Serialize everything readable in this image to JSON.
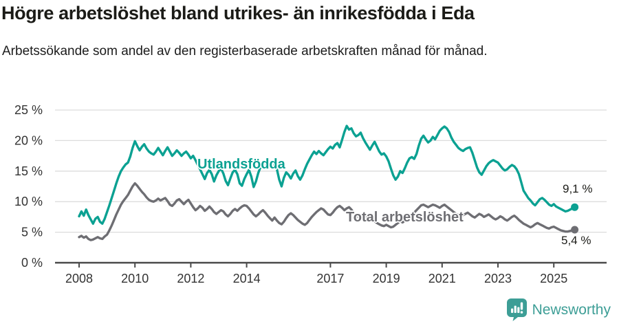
{
  "header": {
    "title": "Högre arbetslöshet bland utrikes- än inrikesfödda i Eda",
    "subtitle": "Arbetssökande som andel av den registerbaserade arbetskraften månad för månad."
  },
  "footer": {
    "brand": "Newsworthy",
    "logo_icon": "bar-chart-speech-bubble-icon"
  },
  "colors": {
    "accent_teal": "#0ba192",
    "series_gray": "#6e6e73",
    "logo_teal": "#3d9e96",
    "grid": "#dcdcdc",
    "axis": "#4a4a4a",
    "tick_text": "#333333",
    "heading_text": "#1b1b17"
  },
  "chart_data": {
    "type": "line",
    "unit": "%",
    "x_start": "2008-01",
    "x_frequency": "monthly",
    "ylim": [
      0,
      25
    ],
    "grid": true,
    "legend_position": "inline-labels",
    "y_ticks": [
      0,
      5,
      10,
      15,
      20,
      25
    ],
    "y_tick_suffix": " %",
    "x_ticks": [
      {
        "label": "2008",
        "year": 2008
      },
      {
        "label": "2010",
        "year": 2010
      },
      {
        "label": "2012",
        "year": 2012
      },
      {
        "label": "2014",
        "year": 2014
      },
      {
        "label": "2017",
        "year": 2017
      },
      {
        "label": "2019",
        "year": 2019
      },
      {
        "label": "2021",
        "year": 2021
      },
      {
        "label": "2023",
        "year": 2023
      },
      {
        "label": "2025",
        "year": 2025
      }
    ],
    "series": [
      {
        "name": "Utlandsfödda",
        "color": "#0ba192",
        "end_label": "9,1 %",
        "end_value": 9.1,
        "values": [
          7.6,
          8.4,
          7.7,
          8.7,
          7.8,
          7.1,
          6.4,
          7.2,
          7.5,
          6.7,
          6.4,
          7.2,
          8.3,
          9.4,
          10.6,
          11.8,
          13.0,
          14.1,
          15.0,
          15.6,
          16.1,
          16.4,
          17.4,
          18.8,
          19.9,
          19.1,
          18.4,
          19.0,
          19.4,
          18.7,
          18.2,
          17.9,
          17.7,
          18.2,
          18.8,
          18.2,
          17.6,
          18.3,
          18.9,
          18.2,
          17.5,
          17.9,
          18.4,
          18.0,
          17.5,
          17.9,
          18.2,
          17.7,
          17.1,
          17.5,
          16.8,
          16.0,
          15.3,
          14.5,
          13.7,
          14.7,
          15.2,
          14.5,
          13.3,
          14.3,
          15.0,
          15.4,
          14.6,
          13.4,
          12.7,
          13.8,
          14.8,
          15.2,
          14.5,
          13.0,
          12.6,
          13.7,
          14.5,
          15.2,
          14.1,
          12.4,
          13.3,
          14.7,
          15.7,
          16.2,
          15.8,
          16.3,
          15.7,
          16.0,
          16.2,
          15.3,
          13.6,
          12.5,
          13.9,
          14.8,
          14.4,
          13.8,
          14.6,
          15.1,
          14.2,
          13.6,
          14.3,
          15.3,
          16.2,
          16.9,
          17.6,
          18.2,
          17.8,
          18.3,
          17.9,
          17.6,
          18.1,
          18.6,
          19.0,
          18.7,
          19.3,
          19.6,
          18.9,
          20.1,
          21.4,
          22.4,
          21.8,
          22.0,
          21.2,
          20.7,
          20.9,
          21.3,
          20.4,
          19.7,
          19.1,
          18.5,
          19.2,
          19.8,
          19.0,
          18.2,
          17.7,
          17.9,
          17.4,
          16.6,
          15.4,
          14.3,
          13.6,
          14.1,
          15.0,
          14.7,
          15.5,
          16.4,
          17.1,
          17.3,
          17.0,
          17.8,
          19.2,
          20.3,
          20.8,
          20.2,
          19.7,
          20.0,
          20.6,
          20.2,
          20.9,
          21.6,
          22.0,
          22.3,
          22.0,
          21.4,
          20.5,
          19.8,
          19.3,
          18.8,
          18.5,
          18.3,
          18.6,
          18.8,
          18.9,
          18.0,
          16.8,
          15.6,
          14.8,
          14.4,
          15.1,
          15.8,
          16.3,
          16.6,
          16.8,
          16.6,
          16.4,
          15.9,
          15.4,
          15.1,
          15.3,
          15.7,
          16.0,
          15.8,
          15.3,
          14.5,
          13.2,
          11.8,
          11.2,
          10.6,
          10.2,
          9.7,
          9.4,
          9.9,
          10.4,
          10.6,
          10.3,
          9.9,
          9.5,
          9.3,
          9.6,
          9.2,
          9.0,
          8.8,
          8.6,
          8.4,
          8.5,
          8.7,
          8.9,
          9.1
        ]
      },
      {
        "name": "Total arbetslöshet",
        "color": "#6e6e73",
        "end_label": "5,4 %",
        "end_value": 5.4,
        "values": [
          4.2,
          4.4,
          4.1,
          4.3,
          3.9,
          3.7,
          3.8,
          4.0,
          4.2,
          4.0,
          3.9,
          4.3,
          4.6,
          5.3,
          6.1,
          7.0,
          7.9,
          8.7,
          9.5,
          10.1,
          10.6,
          11.1,
          11.8,
          12.5,
          13.0,
          12.6,
          12.1,
          11.6,
          11.2,
          10.7,
          10.3,
          10.1,
          10.0,
          10.2,
          10.5,
          10.2,
          10.4,
          10.6,
          10.1,
          9.5,
          9.3,
          9.7,
          10.2,
          10.4,
          10.0,
          9.6,
          10.0,
          10.3,
          9.7,
          9.1,
          8.6,
          8.9,
          9.3,
          9.0,
          8.5,
          8.8,
          9.2,
          8.8,
          8.3,
          8.0,
          8.3,
          8.6,
          8.4,
          7.9,
          7.6,
          8.0,
          8.5,
          8.8,
          8.5,
          8.9,
          9.2,
          9.4,
          9.3,
          8.9,
          8.4,
          7.9,
          7.6,
          7.9,
          8.3,
          8.6,
          8.2,
          7.7,
          7.3,
          6.9,
          7.4,
          6.9,
          6.5,
          6.3,
          6.7,
          7.3,
          7.8,
          8.1,
          7.8,
          7.4,
          7.0,
          6.7,
          6.4,
          6.2,
          6.5,
          7.0,
          7.5,
          7.9,
          8.3,
          8.6,
          8.9,
          8.7,
          8.3,
          7.9,
          7.8,
          8.2,
          8.7,
          9.1,
          9.3,
          9.0,
          8.6,
          8.9,
          9.1,
          8.7,
          8.2,
          7.8,
          7.5,
          7.3,
          7.0,
          7.4,
          7.7,
          7.4,
          7.0,
          6.8,
          6.5,
          6.3,
          6.1,
          6.0,
          6.2,
          6.0,
          5.8,
          5.9,
          6.2,
          6.5,
          6.8,
          6.6,
          6.9,
          7.2,
          7.5,
          7.8,
          8.2,
          8.6,
          9.0,
          9.4,
          9.5,
          9.3,
          9.1,
          9.3,
          9.5,
          9.4,
          9.2,
          9.0,
          9.3,
          9.5,
          9.2,
          8.9,
          8.6,
          8.3,
          8.0,
          7.8,
          7.6,
          7.8,
          8.0,
          8.2,
          7.9,
          7.6,
          7.4,
          7.7,
          8.0,
          7.8,
          7.5,
          7.7,
          7.9,
          7.6,
          7.3,
          7.1,
          7.3,
          7.6,
          7.4,
          7.1,
          6.9,
          7.2,
          7.5,
          7.7,
          7.4,
          7.0,
          6.7,
          6.4,
          6.2,
          6.0,
          5.8,
          6.0,
          6.3,
          6.5,
          6.3,
          6.1,
          5.9,
          5.7,
          5.6,
          5.8,
          5.9,
          5.7,
          5.5,
          5.3,
          5.2,
          5.1,
          5.1,
          5.2,
          5.3,
          5.4
        ]
      }
    ]
  }
}
